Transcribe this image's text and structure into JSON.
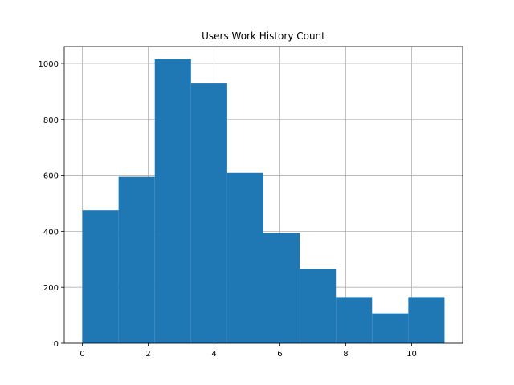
{
  "chart_data": {
    "type": "bar",
    "title": "Users Work History Count",
    "xlabel": "",
    "ylabel": "",
    "bin_edges": [
      0,
      1.1,
      2.2,
      3.3,
      4.4,
      5.5,
      6.6,
      7.7,
      8.8,
      9.9,
      11
    ],
    "values": [
      475,
      594,
      1015,
      928,
      608,
      394,
      265,
      165,
      107,
      165
    ],
    "xlim": [
      -0.55,
      11.55
    ],
    "ylim": [
      0,
      1060
    ],
    "xticks": [
      0,
      2,
      4,
      6,
      8,
      10
    ],
    "xtick_labels": [
      "0",
      "2",
      "4",
      "6",
      "8",
      "10"
    ],
    "yticks": [
      0,
      200,
      400,
      600,
      800,
      1000
    ],
    "ytick_labels": [
      "0",
      "200",
      "400",
      "600",
      "800",
      "1000"
    ],
    "grid": true,
    "legend": "none",
    "colors": {
      "bar": "#1f77b4",
      "grid": "#b0b0b0",
      "axis": "#000000"
    }
  }
}
